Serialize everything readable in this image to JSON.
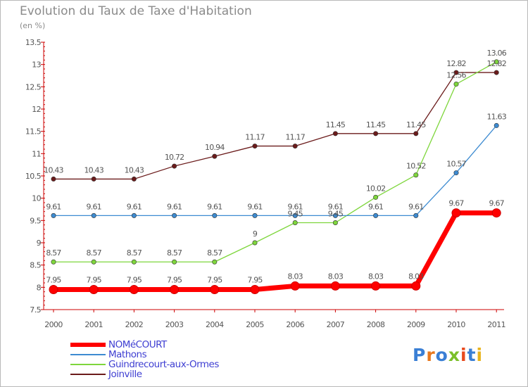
{
  "title": "Evolution du Taux de Taxe d'Habitation",
  "subtitle": "(en %)",
  "logo": {
    "text": "Proxiti",
    "colors": [
      "#3a7fd5",
      "#e8781e",
      "#3a7fd5",
      "#7bbf2a",
      "#e84a1e",
      "#3a7fd5",
      "#e8b41e"
    ]
  },
  "chart_data": {
    "type": "line",
    "x": [
      "2000",
      "2001",
      "2002",
      "2003",
      "2004",
      "2005",
      "2006",
      "2007",
      "2008",
      "2009",
      "2010",
      "2011"
    ],
    "ylim": [
      7.5,
      13.5
    ],
    "yticks": [
      "7.5",
      "8",
      "8.5",
      "9",
      "9.5",
      "10",
      "10.5",
      "11",
      "11.5",
      "12",
      "12.5",
      "13",
      "13.5"
    ],
    "grid": false,
    "legend_position": "bottom-left",
    "series": [
      {
        "name": "NOMéCOURT",
        "color": "#ff0000",
        "values": [
          7.95,
          7.95,
          7.95,
          7.95,
          7.95,
          7.95,
          8.03,
          8.03,
          8.03,
          8.03,
          9.67,
          9.67
        ],
        "labels": [
          "7.95",
          "7.95",
          "7.95",
          "7.95",
          "7.95",
          "7.95",
          "8.03",
          "8.03",
          "8.03",
          "8.03",
          "9.67",
          "9.67"
        ]
      },
      {
        "name": "Mathons",
        "color": "#3d8bd1",
        "values": [
          9.61,
          9.61,
          9.61,
          9.61,
          9.61,
          9.61,
          9.61,
          9.61,
          9.61,
          9.61,
          10.57,
          11.63
        ],
        "labels": [
          "9.61",
          "9.61",
          "9.61",
          "9.61",
          "9.61",
          "9.61",
          "9.61",
          "9.61",
          "9.61",
          "9.61",
          "10.57",
          "11.63"
        ]
      },
      {
        "name": "Guindrecourt-aux-Ormes",
        "color": "#7ed63c",
        "values": [
          8.57,
          8.57,
          8.57,
          8.57,
          8.57,
          9,
          9.45,
          9.45,
          10.02,
          10.52,
          12.56,
          13.06
        ],
        "labels": [
          "8.57",
          "8.57",
          "8.57",
          "8.57",
          "8.57",
          "9",
          "9.45",
          "9.45",
          "10.02",
          "10.52",
          "12.56",
          "13.06"
        ]
      },
      {
        "name": "Joinville",
        "color": "#6b1b1b",
        "values": [
          10.43,
          10.43,
          10.43,
          10.72,
          10.94,
          11.17,
          11.17,
          11.45,
          11.45,
          11.45,
          12.82,
          12.82
        ],
        "labels": [
          "10.43",
          "10.43",
          "10.43",
          "10.72",
          "10.94",
          "11.17",
          "11.17",
          "11.45",
          "11.45",
          "11.45",
          "12.82",
          "12.82"
        ]
      }
    ]
  }
}
